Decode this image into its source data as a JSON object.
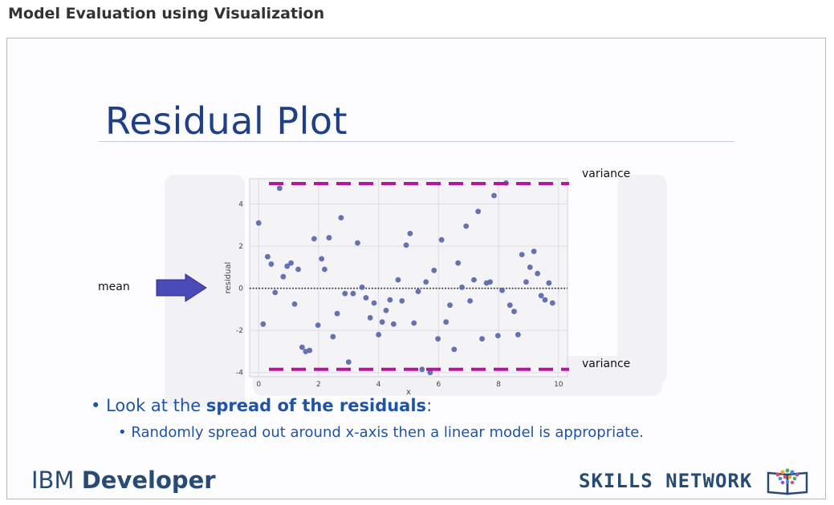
{
  "page": {
    "heading": "Model Evaluation using Visualization"
  },
  "slide": {
    "title": "Residual Plot",
    "bullet1": {
      "prefix": "Look at the ",
      "bold": "spread of the residuals",
      "suffix": ":"
    },
    "bullet2": "Randomly spread out around x-axis then a linear model is appropriate.",
    "annotations": {
      "mean": "mean",
      "variance_top": "variance",
      "variance_bottom": "variance"
    },
    "footer": {
      "ibm_prefix": "IBM",
      "ibm_bold": "Developer",
      "skills": "SKILLS NETWORK"
    }
  },
  "colors": {
    "title": "#1f3f89",
    "bullet": "#1f53a8",
    "point": "#5b6aad",
    "variance_line": "#b5169b",
    "arrow": "#4a4ab8",
    "footer": "#274b72"
  },
  "icons": {
    "arrow": "right-arrow-icon",
    "book": "book-icon"
  },
  "chart_data": {
    "type": "scatter",
    "xlabel": "x",
    "ylabel": "residual",
    "xlim": [
      -0.3,
      10.3
    ],
    "ylim": [
      -4.2,
      5.2
    ],
    "xticks": [
      0,
      2,
      4,
      6,
      8,
      10
    ],
    "yticks": [
      -4,
      -2,
      0,
      2,
      4
    ],
    "grid": true,
    "mean_line": 0,
    "variance_lines": [
      4.97,
      -3.85
    ],
    "points": [
      [
        0.0,
        3.1
      ],
      [
        0.15,
        -1.7
      ],
      [
        0.3,
        1.5
      ],
      [
        0.42,
        1.15
      ],
      [
        0.55,
        -0.2
      ],
      [
        0.7,
        4.75
      ],
      [
        0.82,
        0.55
      ],
      [
        0.95,
        1.05
      ],
      [
        1.08,
        1.2
      ],
      [
        1.2,
        -0.75
      ],
      [
        1.32,
        0.9
      ],
      [
        1.45,
        -2.8
      ],
      [
        1.57,
        -3.0
      ],
      [
        1.7,
        -2.95
      ],
      [
        1.85,
        2.35
      ],
      [
        1.98,
        -1.75
      ],
      [
        2.1,
        1.4
      ],
      [
        2.2,
        0.9
      ],
      [
        2.35,
        2.4
      ],
      [
        2.48,
        -2.3
      ],
      [
        2.62,
        -1.2
      ],
      [
        2.75,
        3.35
      ],
      [
        2.88,
        -0.25
      ],
      [
        3.0,
        -3.5
      ],
      [
        3.15,
        -0.25
      ],
      [
        3.3,
        2.15
      ],
      [
        3.45,
        0.05
      ],
      [
        3.58,
        -0.45
      ],
      [
        3.72,
        -1.4
      ],
      [
        3.85,
        -0.7
      ],
      [
        4.0,
        -2.2
      ],
      [
        4.12,
        -1.6
      ],
      [
        4.25,
        -1.05
      ],
      [
        4.38,
        -0.55
      ],
      [
        4.5,
        -1.7
      ],
      [
        4.65,
        0.4
      ],
      [
        4.78,
        -0.6
      ],
      [
        4.92,
        2.05
      ],
      [
        5.05,
        2.6
      ],
      [
        5.18,
        -1.65
      ],
      [
        5.32,
        -0.15
      ],
      [
        5.45,
        -3.85
      ],
      [
        5.58,
        0.3
      ],
      [
        5.72,
        -4.0
      ],
      [
        5.85,
        0.85
      ],
      [
        5.98,
        -2.4
      ],
      [
        6.1,
        2.3
      ],
      [
        6.25,
        -1.6
      ],
      [
        6.38,
        -0.8
      ],
      [
        6.52,
        -2.9
      ],
      [
        6.65,
        1.2
      ],
      [
        6.78,
        0.05
      ],
      [
        6.92,
        2.95
      ],
      [
        7.05,
        -0.6
      ],
      [
        7.18,
        0.4
      ],
      [
        7.32,
        3.65
      ],
      [
        7.45,
        -2.4
      ],
      [
        7.6,
        0.25
      ],
      [
        7.72,
        0.3
      ],
      [
        7.85,
        4.4
      ],
      [
        7.98,
        -2.25
      ],
      [
        8.12,
        -0.1
      ],
      [
        8.25,
        5.0
      ],
      [
        8.38,
        -0.8
      ],
      [
        8.52,
        -1.1
      ],
      [
        8.65,
        -2.2
      ],
      [
        8.78,
        1.6
      ],
      [
        8.92,
        0.3
      ],
      [
        9.05,
        1.0
      ],
      [
        9.18,
        1.75
      ],
      [
        9.3,
        0.7
      ],
      [
        9.42,
        -0.35
      ],
      [
        9.55,
        -0.55
      ],
      [
        9.68,
        0.25
      ],
      [
        9.8,
        -0.7
      ]
    ]
  }
}
